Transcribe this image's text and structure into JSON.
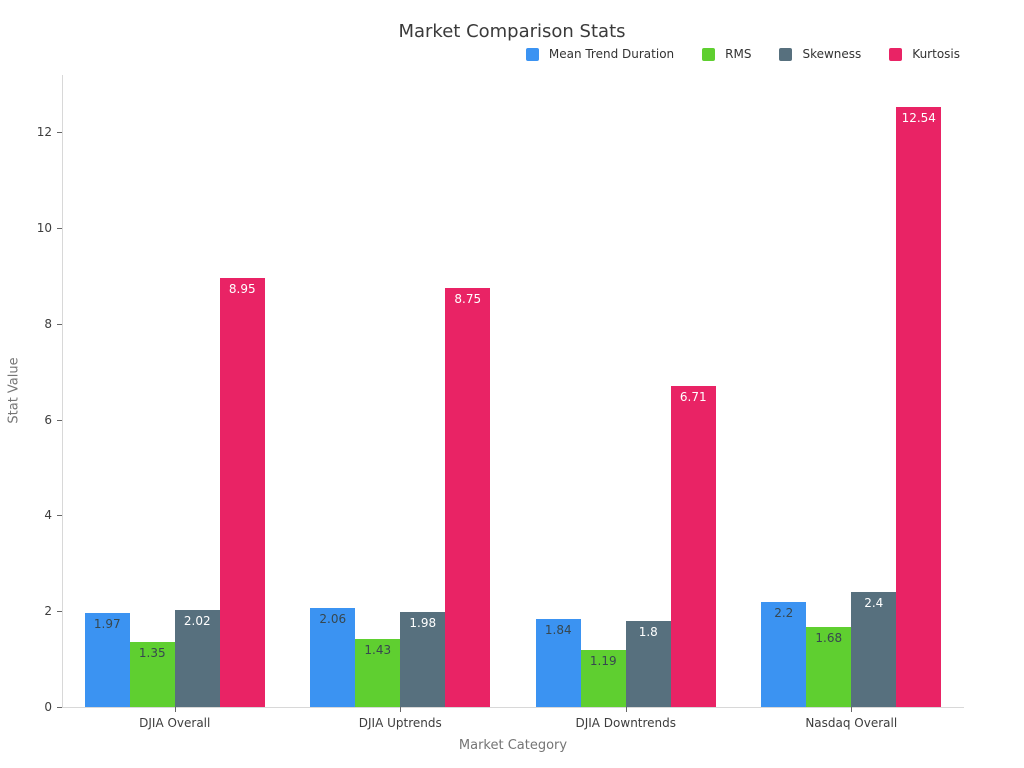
{
  "chart_data": {
    "type": "bar",
    "title": "Market Comparison Stats",
    "xlabel": "Market Category",
    "ylabel": "Stat Value",
    "categories": [
      "DJIA Overall",
      "DJIA Uptrends",
      "DJIA Downtrends",
      "Nasdaq Overall"
    ],
    "series": [
      {
        "name": "Mean Trend Duration",
        "color": "#3B93F2",
        "label_color": "#37474F",
        "values": [
          1.97,
          2.06,
          1.84,
          2.2
        ]
      },
      {
        "name": "RMS",
        "color": "#5FCF30",
        "label_color": "#37474F",
        "values": [
          1.35,
          1.43,
          1.19,
          1.68
        ]
      },
      {
        "name": "Skewness",
        "color": "#57707E",
        "label_color": "#FFFFFF",
        "values": [
          2.02,
          1.98,
          1.8,
          2.4
        ]
      },
      {
        "name": "Kurtosis",
        "color": "#E92365",
        "label_color": "#FFFFFF",
        "values": [
          8.95,
          8.75,
          6.71,
          12.54
        ]
      }
    ],
    "yticks": [
      0,
      2,
      4,
      6,
      8,
      10,
      12
    ],
    "ylim": [
      0,
      13.2
    ],
    "grid": false,
    "legend_position": "top-right",
    "bar_value_labels_shown": true
  }
}
